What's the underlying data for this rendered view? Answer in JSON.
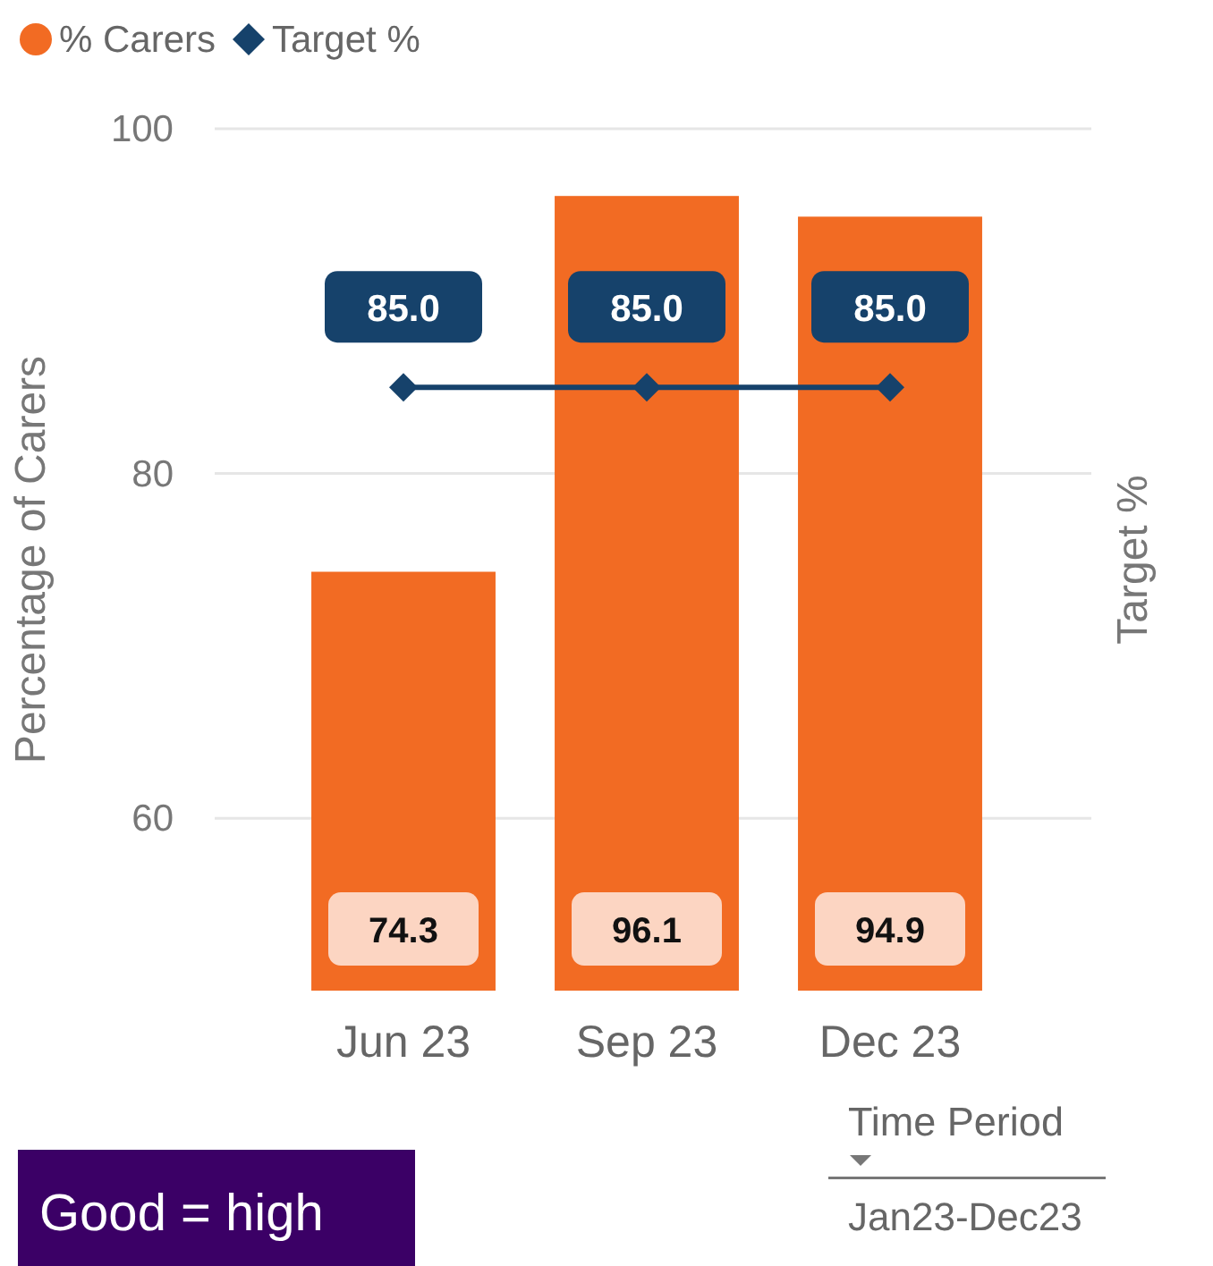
{
  "chart_data": {
    "type": "bar",
    "categories": [
      "Jun 23",
      "Sep 23",
      "Dec 23"
    ],
    "series": [
      {
        "name": "% Carers",
        "color": "#f26b23",
        "values": [
          74.3,
          96.1,
          94.9
        ],
        "value_labels": [
          "74.3",
          "96.1",
          "94.9"
        ]
      },
      {
        "name": "Target %",
        "type": "line",
        "color": "#16426b",
        "values": [
          85,
          85,
          85
        ],
        "value_labels": [
          "85.0",
          "85.0",
          "85.0"
        ]
      }
    ],
    "ylabel": "Percentage of Carers",
    "y2label": "Target %",
    "ylim": [
      50,
      100
    ],
    "yticks": [
      60,
      80,
      100
    ],
    "grid": "y",
    "legend": "top left",
    "marker": "diamond",
    "annotations": [
      "Good = high",
      "Time Period",
      "Jan23-Dec23"
    ]
  }
}
